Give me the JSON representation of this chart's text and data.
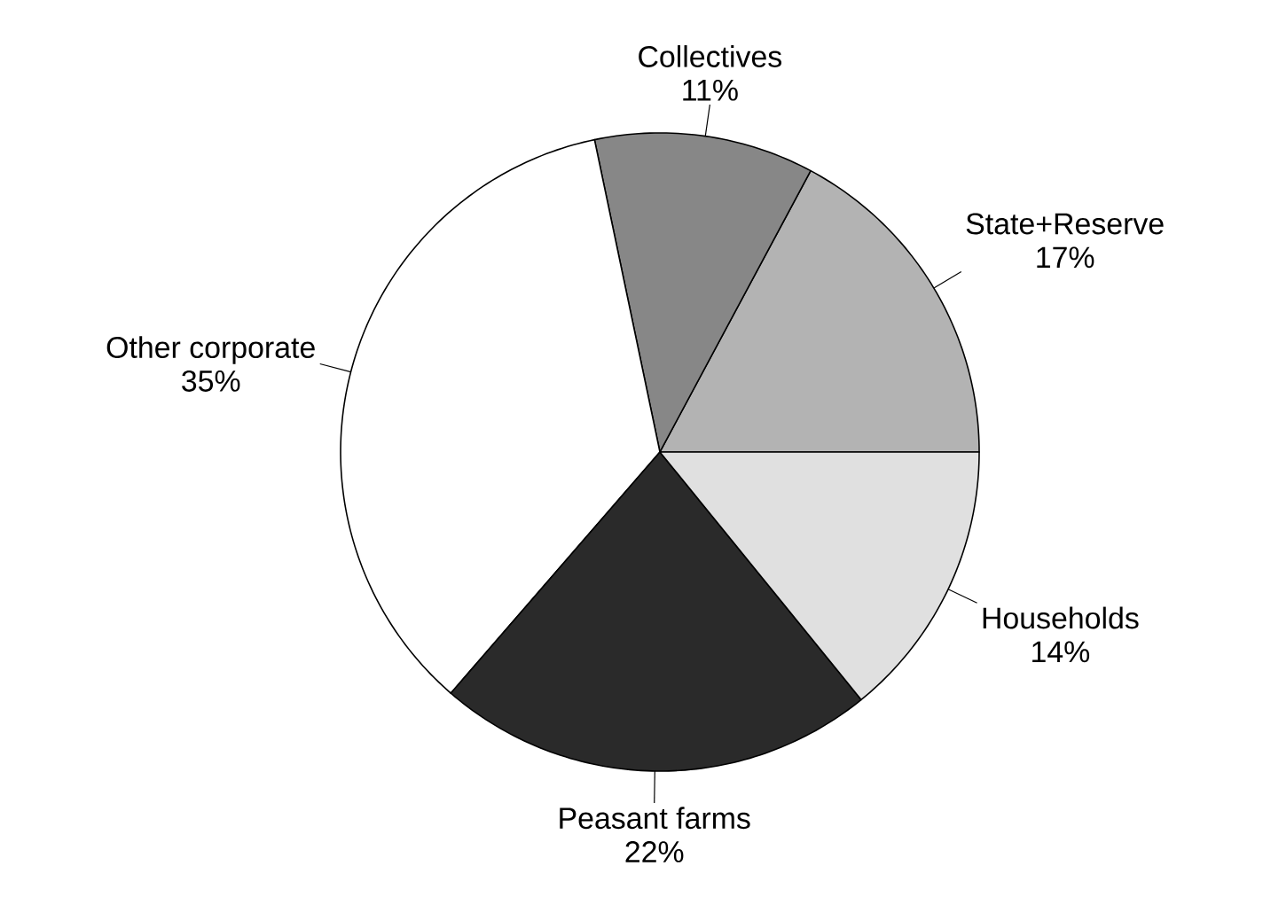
{
  "chart_data": {
    "type": "pie",
    "categories": [
      "State+Reserve",
      "Collectives",
      "Other corporate",
      "Peasant farms",
      "Households"
    ],
    "values": [
      17,
      11,
      35,
      22,
      14
    ],
    "value_labels": [
      "17%",
      "11%",
      "35%",
      "22%",
      "14%"
    ],
    "colors": [
      "#b3b3b3",
      "#878787",
      "#ffffff",
      "#2a2a2a",
      "#e0e0e0"
    ]
  }
}
